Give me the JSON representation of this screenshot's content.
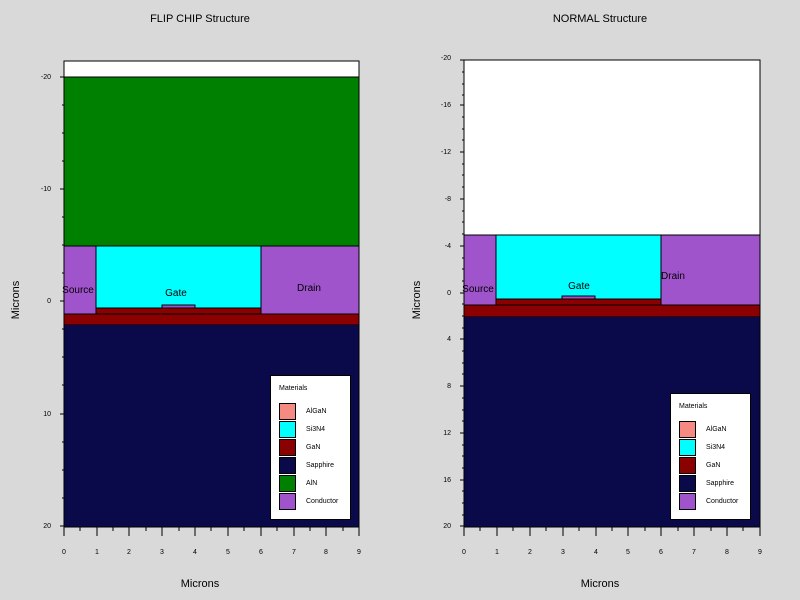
{
  "left": {
    "title": "FLIP CHIP Structure",
    "xlabel": "Microns",
    "ylabel": "Microns",
    "x_ticks": [
      "0",
      "1",
      "2",
      "3",
      "4",
      "5",
      "6",
      "7",
      "8",
      "9"
    ],
    "y_ticks": [
      "-20",
      "-10",
      "0",
      "10",
      "20"
    ],
    "labels": {
      "gate": "Gate",
      "source": "Source",
      "drain": "Drain"
    },
    "legend": {
      "title": "Materials",
      "items": [
        {
          "label": "AlGaN",
          "color": "#f58a82"
        },
        {
          "label": "Si3N4",
          "color": "#00ffff"
        },
        {
          "label": "GaN",
          "color": "#8b0000"
        },
        {
          "label": "Sapphire",
          "color": "#0a0a4a"
        },
        {
          "label": "AlN",
          "color": "#008000"
        },
        {
          "label": "Conductor",
          "color": "#a054cc"
        }
      ]
    }
  },
  "right": {
    "title": "NORMAL Structure",
    "xlabel": "Microns",
    "ylabel": "Microns",
    "x_ticks": [
      "0",
      "1",
      "2",
      "3",
      "4",
      "5",
      "6",
      "7",
      "8",
      "9"
    ],
    "y_ticks": [
      "-20",
      "-16",
      "-12",
      "-8",
      "-4",
      "0",
      "4",
      "8",
      "12",
      "16",
      "20"
    ],
    "labels": {
      "gate": "Gate",
      "source": "Source",
      "drain": "Drain"
    },
    "legend": {
      "title": "Materials",
      "items": [
        {
          "label": "AlGaN",
          "color": "#f58a82"
        },
        {
          "label": "Si3N4",
          "color": "#00ffff"
        },
        {
          "label": "GaN",
          "color": "#8b0000"
        },
        {
          "label": "Sapphire",
          "color": "#0a0a4a"
        },
        {
          "label": "Conductor",
          "color": "#a054cc"
        }
      ]
    }
  }
}
